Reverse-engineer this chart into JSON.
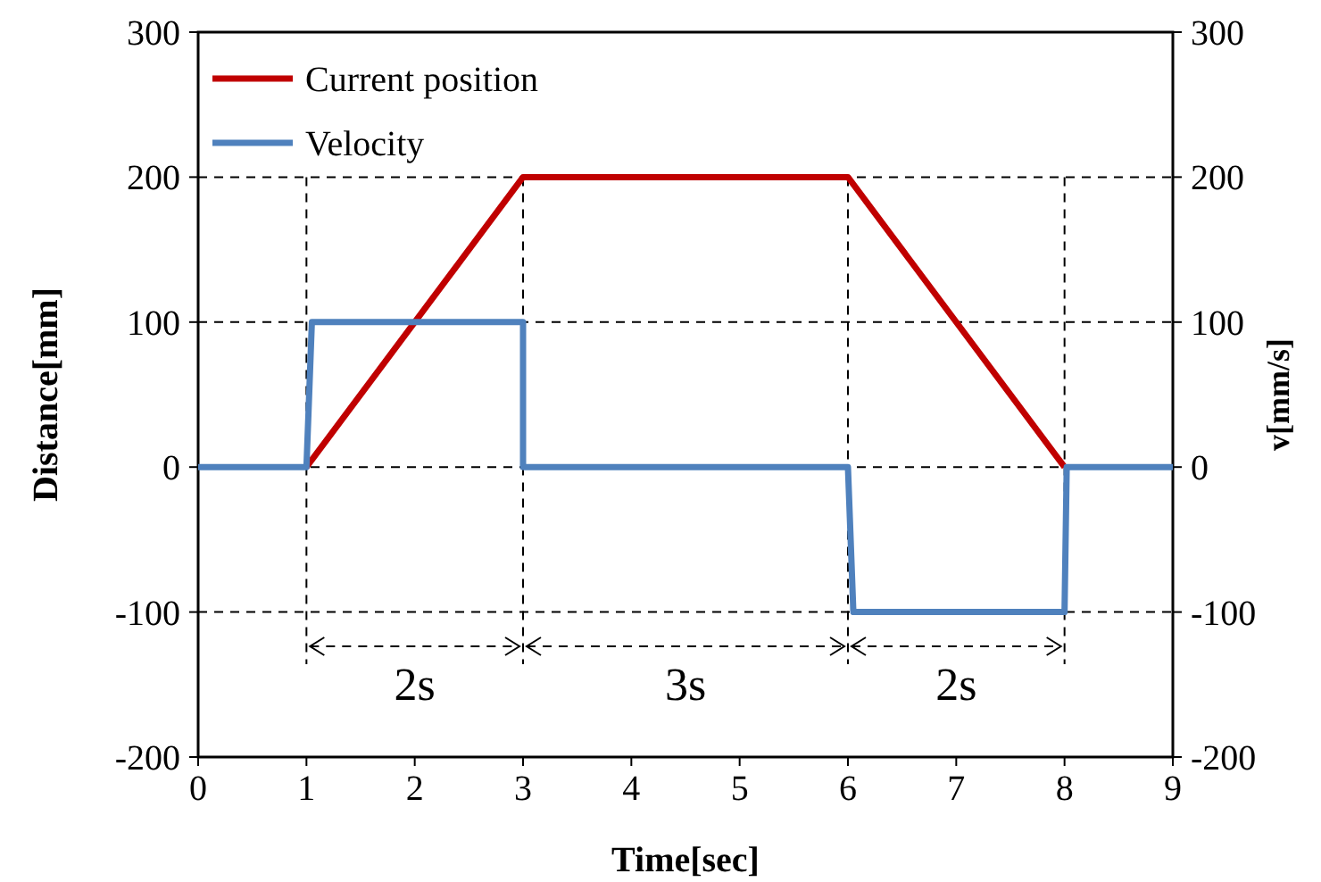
{
  "chart_data": {
    "type": "line",
    "xlabel": "Time[sec]",
    "ylabel": "Distance[mm]",
    "y2label": "v[mm/s]",
    "xlim": [
      0,
      9
    ],
    "xticks": [
      0,
      1,
      2,
      3,
      4,
      5,
      6,
      7,
      8,
      9
    ],
    "ylim": [
      -200,
      300
    ],
    "yticks": [
      -200,
      -100,
      0,
      100,
      200,
      300
    ],
    "y2lim": [
      -200,
      300
    ],
    "y2ticks": [
      -200,
      -100,
      0,
      100,
      200,
      300
    ],
    "grid": "y",
    "legend": "top left",
    "line_style": "solid",
    "series": [
      {
        "name": "Current position",
        "color": "#c00000",
        "x": [
          1,
          3,
          6,
          8
        ],
        "values": [
          0,
          200,
          200,
          0
        ]
      },
      {
        "name": "Velocity",
        "color": "#4f81bd",
        "x": [
          0,
          1,
          1.05,
          3,
          3,
          6,
          6.05,
          8,
          8.02,
          9
        ],
        "values": [
          0,
          0,
          100,
          100,
          0,
          0,
          -100,
          -100,
          0,
          0
        ]
      }
    ],
    "ref_lines": [
      {
        "axis": "x",
        "value": 1,
        "line_style": "dashed",
        "color": "#000000"
      },
      {
        "axis": "x",
        "value": 3,
        "line_style": "dashed",
        "color": "#000000"
      },
      {
        "axis": "x",
        "value": 6,
        "line_style": "dashed",
        "color": "#000000"
      },
      {
        "axis": "x",
        "value": 8,
        "line_style": "dashed",
        "color": "#000000"
      }
    ],
    "annotations": [
      "2s",
      "3s",
      "2s"
    ]
  }
}
